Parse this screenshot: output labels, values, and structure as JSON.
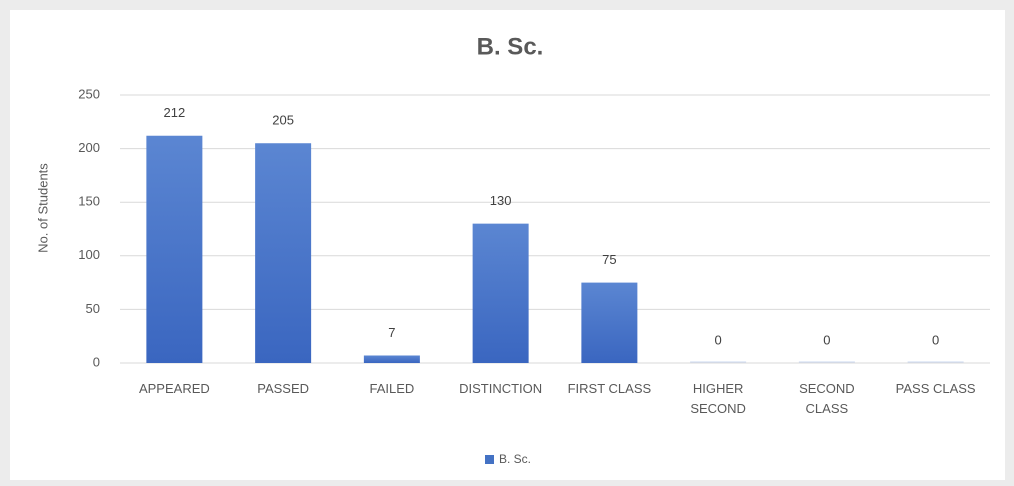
{
  "chart_data": {
    "type": "bar",
    "title": "B. Sc.",
    "y_label": "No. of Students",
    "categories": [
      "APPEARED",
      "PASSED",
      "FAILED",
      "DISTINCTION",
      "FIRST CLASS",
      "HIGHER SECOND",
      "SECOND CLASS",
      "PASS CLASS"
    ],
    "series": [
      {
        "name": "B. Sc.",
        "color": "#4472c4",
        "values": [
          212,
          205,
          7,
          130,
          75,
          0,
          0,
          0
        ]
      }
    ],
    "ylim": [
      0,
      250
    ],
    "yticks": [
      0,
      50,
      100,
      150,
      200,
      250
    ],
    "grid": true,
    "legend": "bottom"
  }
}
